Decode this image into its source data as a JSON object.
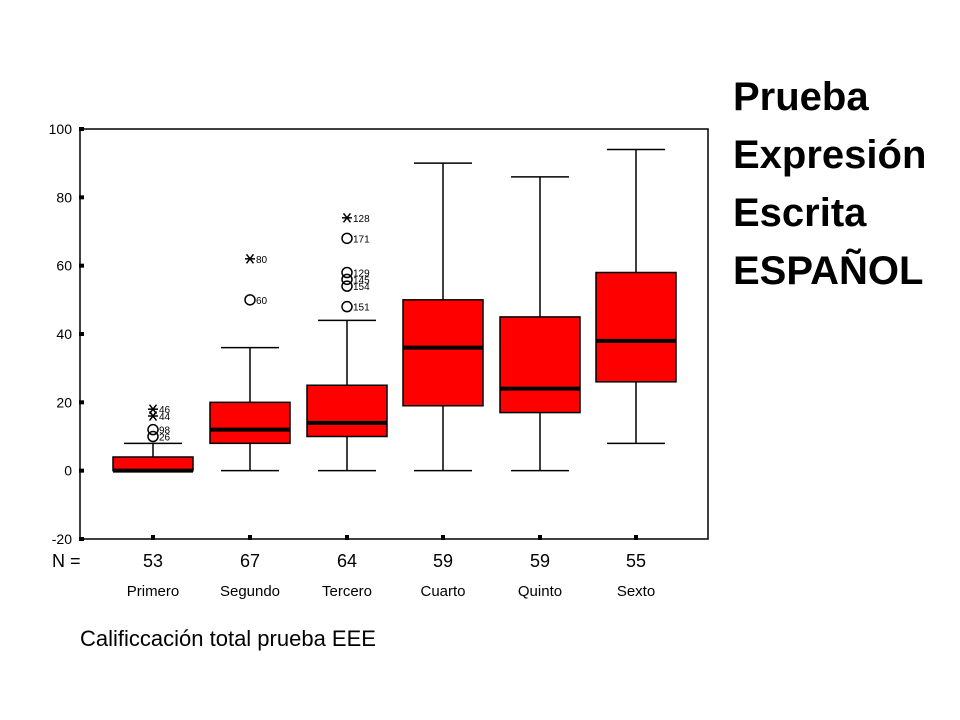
{
  "side_title": [
    "Prueba",
    "Expresión",
    "Escrita",
    "ESPAÑOL"
  ],
  "caption": "Calificcación total prueba EEE",
  "n_label": "N =",
  "colors": {
    "box_fill": "#ff0000",
    "line": "#000000",
    "background": "#ffffff"
  },
  "chart_data": {
    "type": "boxplot",
    "title": "",
    "xlabel": "",
    "ylabel": "",
    "ylim": [
      -20,
      100
    ],
    "yticks": [
      -20,
      0,
      20,
      40,
      60,
      80,
      100
    ],
    "grid": false,
    "categories": [
      "Primero",
      "Segundo",
      "Tercero",
      "Cuarto",
      "Quinto",
      "Sexto"
    ],
    "n": [
      53,
      67,
      64,
      59,
      59,
      55
    ],
    "boxes": [
      {
        "whisker_low": 0,
        "q1": 0,
        "median": 0,
        "q3": 4,
        "whisker_high": 8
      },
      {
        "whisker_low": 0,
        "q1": 8,
        "median": 12,
        "q3": 20,
        "whisker_high": 36
      },
      {
        "whisker_low": 0,
        "q1": 10,
        "median": 14,
        "q3": 25,
        "whisker_high": 44
      },
      {
        "whisker_low": 0,
        "q1": 19,
        "median": 36,
        "q3": 50,
        "whisker_high": 90
      },
      {
        "whisker_low": 0,
        "q1": 17,
        "median": 24,
        "q3": 45,
        "whisker_high": 86
      },
      {
        "whisker_low": 8,
        "q1": 26,
        "median": 38,
        "q3": 58,
        "whisker_high": 94
      }
    ],
    "outliers": [
      {
        "group": 0,
        "value": 18,
        "kind": "extreme",
        "label": "46"
      },
      {
        "group": 0,
        "value": 16,
        "kind": "extreme",
        "label": "44"
      },
      {
        "group": 0,
        "value": 12,
        "kind": "outlier",
        "label": "98"
      },
      {
        "group": 0,
        "value": 10,
        "kind": "outlier",
        "label": "26"
      },
      {
        "group": 1,
        "value": 62,
        "kind": "extreme",
        "label": "80"
      },
      {
        "group": 1,
        "value": 50,
        "kind": "outlier",
        "label": "60"
      },
      {
        "group": 2,
        "value": 74,
        "kind": "extreme",
        "label": "128"
      },
      {
        "group": 2,
        "value": 68,
        "kind": "outlier",
        "label": "171"
      },
      {
        "group": 2,
        "value": 58,
        "kind": "outlier",
        "label": "129"
      },
      {
        "group": 2,
        "value": 56,
        "kind": "outlier",
        "label": "145"
      },
      {
        "group": 2,
        "value": 54,
        "kind": "outlier",
        "label": "154"
      },
      {
        "group": 2,
        "value": 48,
        "kind": "outlier",
        "label": "151"
      }
    ]
  }
}
